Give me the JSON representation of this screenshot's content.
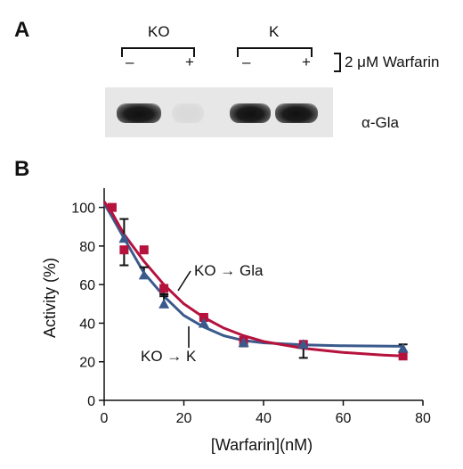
{
  "panel_a": {
    "letter": "A",
    "groups": [
      {
        "label": "KO",
        "lanes": [
          "–",
          "+"
        ]
      },
      {
        "label": "K",
        "lanes": [
          "–",
          "+"
        ]
      }
    ],
    "treatment_label": "2 μM Warfarin",
    "blot_label": "α-Gla",
    "band_intensity": [
      1.0,
      0.05,
      1.0,
      1.0
    ]
  },
  "panel_b": {
    "letter": "B",
    "annotations": {
      "gla": "KO → Gla",
      "k": "KO → K"
    }
  },
  "chart_data": {
    "type": "scatter",
    "xlabel": "[Warfarin](nM)",
    "ylabel": "Activity (%)",
    "xlim": [
      0,
      80
    ],
    "ylim": [
      0,
      105
    ],
    "xticks": [
      0,
      20,
      40,
      60,
      80
    ],
    "yticks": [
      0,
      20,
      40,
      60,
      80,
      100
    ],
    "series": [
      {
        "name": "KO → Gla",
        "color": "#b5123e",
        "marker": "square",
        "points": [
          {
            "x": 2,
            "y": 100
          },
          {
            "x": 5,
            "y": 78,
            "err": 8
          },
          {
            "x": 10,
            "y": 78
          },
          {
            "x": 15,
            "y": 58,
            "err": 4
          },
          {
            "x": 25,
            "y": 43
          },
          {
            "x": 35,
            "y": 31,
            "err": 3
          },
          {
            "x": 50,
            "y": 29,
            "err": 7
          },
          {
            "x": 75,
            "y": 23
          }
        ],
        "curve": [
          {
            "x": 0,
            "y": 103
          },
          {
            "x": 2,
            "y": 97
          },
          {
            "x": 5,
            "y": 86
          },
          {
            "x": 10,
            "y": 72
          },
          {
            "x": 15,
            "y": 60
          },
          {
            "x": 20,
            "y": 50
          },
          {
            "x": 25,
            "y": 43
          },
          {
            "x": 30,
            "y": 37.5
          },
          {
            "x": 35,
            "y": 33.5
          },
          {
            "x": 40,
            "y": 30.5
          },
          {
            "x": 50,
            "y": 27
          },
          {
            "x": 60,
            "y": 24.8
          },
          {
            "x": 70,
            "y": 23.5
          },
          {
            "x": 75,
            "y": 23
          }
        ]
      },
      {
        "name": "KO → K",
        "color": "#3b5a8c",
        "marker": "triangle",
        "points": [
          {
            "x": 5,
            "y": 84,
            "err": 10
          },
          {
            "x": 10,
            "y": 65,
            "err": 4
          },
          {
            "x": 15,
            "y": 50,
            "err": 5
          },
          {
            "x": 25,
            "y": 40,
            "err": 3
          },
          {
            "x": 35,
            "y": 30
          },
          {
            "x": 50,
            "y": 29
          },
          {
            "x": 75,
            "y": 27,
            "err": 2
          }
        ],
        "curve": [
          {
            "x": 0,
            "y": 102
          },
          {
            "x": 2,
            "y": 95
          },
          {
            "x": 5,
            "y": 84
          },
          {
            "x": 10,
            "y": 66
          },
          {
            "x": 15,
            "y": 54
          },
          {
            "x": 20,
            "y": 44
          },
          {
            "x": 25,
            "y": 38
          },
          {
            "x": 30,
            "y": 33.5
          },
          {
            "x": 35,
            "y": 31
          },
          {
            "x": 40,
            "y": 29.8
          },
          {
            "x": 50,
            "y": 28.8
          },
          {
            "x": 60,
            "y": 28.3
          },
          {
            "x": 75,
            "y": 28
          }
        ]
      }
    ]
  }
}
